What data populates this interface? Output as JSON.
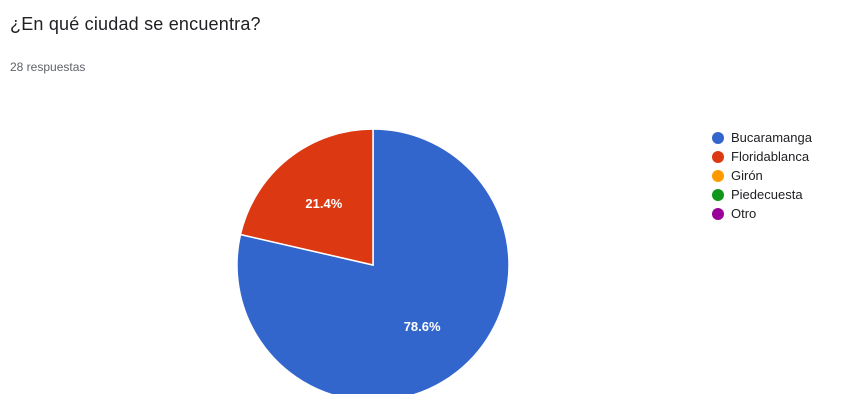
{
  "question": {
    "title": "¿En qué ciudad se encuentra?",
    "responses_label": "28 respuestas"
  },
  "chart_data": {
    "type": "pie",
    "title": "",
    "categories": [
      "Bucaramanga",
      "Floridablanca",
      "Girón",
      "Piedecuesta",
      "Otro"
    ],
    "values": [
      78.6,
      21.4,
      0,
      0,
      0
    ],
    "data_labels": [
      "78.6%",
      "21.4%",
      "",
      "",
      ""
    ],
    "colors": [
      "#3366cc",
      "#dc3912",
      "#ff9900",
      "#109618",
      "#990099"
    ],
    "start_angle_deg": 0,
    "direction": "clockwise",
    "legend_position": "right"
  }
}
